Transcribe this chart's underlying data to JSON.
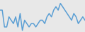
{
  "values": [
    8,
    8,
    3,
    3,
    6,
    5,
    4,
    6,
    3,
    7,
    2,
    5,
    4,
    3,
    4,
    4,
    3,
    4,
    5,
    5,
    4,
    6,
    7,
    6,
    8,
    9,
    8,
    10,
    9,
    8,
    7,
    6,
    5,
    7,
    6,
    4,
    5,
    6,
    5
  ],
  "line_color": "#5b9fd4",
  "background_color": "#e8e8e8",
  "linewidth": 1.1
}
